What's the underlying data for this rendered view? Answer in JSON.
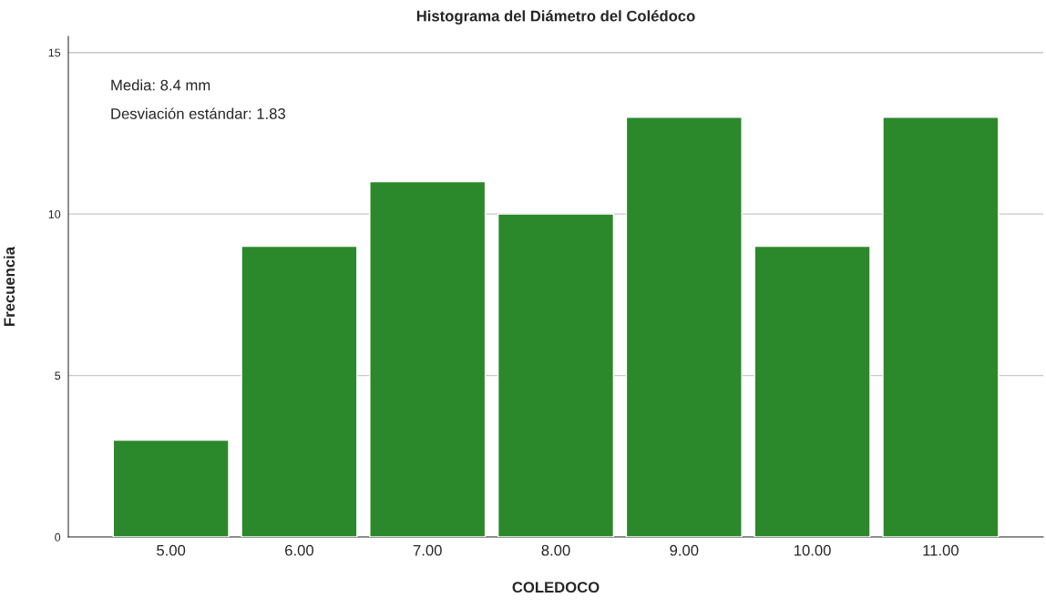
{
  "chart_data": {
    "type": "bar",
    "title": "Histograma del Diámetro del Colédoco",
    "xlabel": "COLEDOCO",
    "ylabel": "Frecuencia",
    "categories": [
      "5.00",
      "6.00",
      "7.00",
      "8.00",
      "9.00",
      "10.00",
      "11.00"
    ],
    "values": [
      3,
      9,
      11,
      10,
      13,
      9,
      13
    ],
    "color": "#2b882b",
    "ylim": [
      0,
      15.5
    ],
    "yticks": [
      0,
      5,
      10,
      15
    ],
    "grid": "y",
    "legend": false,
    "annotations": [
      "Media: 8.4 mm",
      "Desviación estándar: 1.83"
    ]
  }
}
